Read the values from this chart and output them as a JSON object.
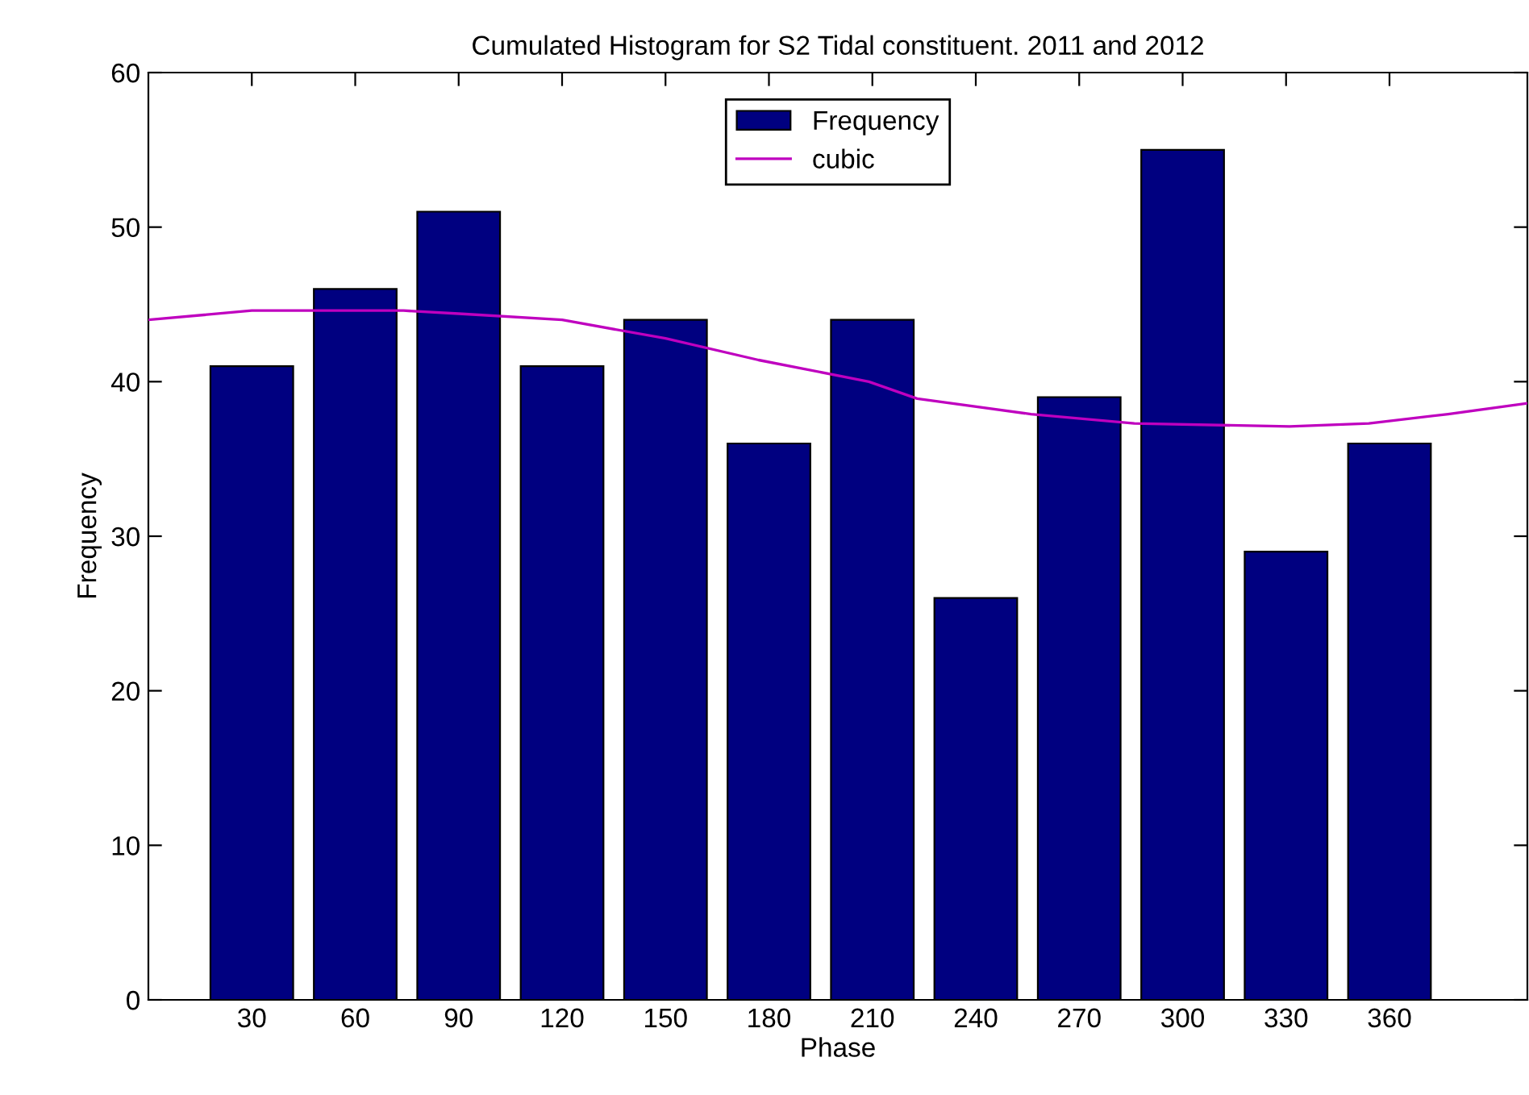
{
  "chart_data": {
    "type": "bar",
    "title": "Cumulated Histogram for S2 Tidal constituent. 2011 and 2012",
    "xlabel": "Phase",
    "ylabel": "Frequency",
    "x": [
      30,
      60,
      90,
      120,
      150,
      180,
      210,
      240,
      270,
      300,
      330,
      360
    ],
    "series": [
      {
        "name": "Frequency",
        "color": "#000080",
        "values": [
          41,
          46,
          51,
          41,
          44,
          36,
          44,
          26,
          39,
          55,
          29,
          36
        ]
      },
      {
        "name": "cubic",
        "type": "line",
        "color": "#bf00bf",
        "x": [
          0,
          30,
          74,
          90,
          120,
          150,
          177,
          209,
          223,
          256,
          286,
          331,
          354,
          377,
          400
        ],
        "values": [
          44.0,
          44.6,
          44.6,
          44.4,
          44.0,
          42.8,
          41.4,
          40.0,
          38.9,
          37.9,
          37.3,
          37.1,
          37.3,
          37.9,
          38.6
        ]
      }
    ],
    "xlim": [
      0,
      400
    ],
    "xticks": [
      30,
      60,
      90,
      120,
      150,
      180,
      210,
      240,
      270,
      300,
      330,
      360
    ],
    "ylim": [
      0,
      60
    ],
    "yticks": [
      0,
      10,
      20,
      30,
      40,
      50,
      60
    ],
    "grid": false,
    "legend": "top"
  }
}
